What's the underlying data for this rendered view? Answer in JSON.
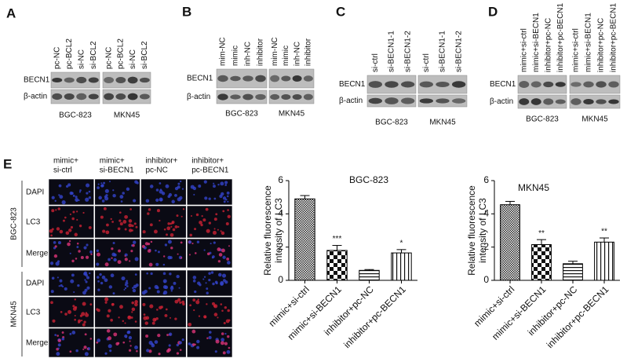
{
  "blots": [
    {
      "label": "A",
      "rows": [
        "BECN1",
        "β-actin"
      ],
      "cell_lines": [
        "BGC-823",
        "MKN45"
      ],
      "lanes": [
        [
          "pc-NC",
          "pc-BCL2",
          "si-NC",
          "si-BCL2"
        ],
        [
          "pc-NC",
          "pc-BCL2",
          "si-NC",
          "si-BCL2"
        ]
      ]
    },
    {
      "label": "B",
      "rows": [
        "BECN1",
        "β-actin"
      ],
      "cell_lines": [
        "BGC-823",
        "MKN45"
      ],
      "lanes": [
        [
          "mim-NC",
          "mimic",
          "inh-NC",
          "inhibitor"
        ],
        [
          "mim-NC",
          "mimic",
          "inh-NC",
          "inhibitor"
        ]
      ]
    },
    {
      "label": "C",
      "rows": [
        "BECN1",
        "β-actin"
      ],
      "cell_lines": [
        "BGC-823",
        "MKN45"
      ],
      "lanes": [
        [
          "si-ctrl",
          "si-BECN1-1",
          "si-BECN1-2"
        ],
        [
          "si-ctrl",
          "si-BECN1-1",
          "si-BECN1-2"
        ]
      ]
    },
    {
      "label": "D",
      "rows": [
        "BECN1",
        "β-actin"
      ],
      "cell_lines": [
        "BGC-823",
        "MKN45"
      ],
      "lanes": [
        [
          "mimic+si-ctrl",
          "mimic+si-BECN1",
          "inhibitor+pc-NC",
          "inhibitor+pc-BECN1"
        ],
        [
          "mimic+si-ctrl",
          "mimic+si-BECN1",
          "inhibitor+pc-NC",
          "inhibitor+pc-BECN1"
        ]
      ]
    }
  ],
  "panel_e": {
    "label": "E",
    "columns": [
      [
        "mimic+",
        "si-ctrl"
      ],
      [
        "mimic+",
        "si-BECN1"
      ],
      [
        "inhibitor+",
        "pc-NC"
      ],
      [
        "inhibitor+",
        "pc-BECN1"
      ]
    ],
    "groups": [
      "BGC-823",
      "MKN45"
    ],
    "rows": [
      "DAPI",
      "LC3",
      "Merge"
    ]
  },
  "chart_data": [
    {
      "type": "bar",
      "title": "BGC-823",
      "ylabel": [
        "Relative fluorescence",
        "intensity of LC3"
      ],
      "categories": [
        "mimic+si-ctrl",
        "mimic+si-BECN1",
        "inhibitor+pc-NC",
        "inhibitor+pc-BECN1"
      ],
      "values": [
        4.9,
        1.8,
        0.6,
        1.65
      ],
      "errors": [
        0.2,
        0.3,
        0.05,
        0.2
      ],
      "annotations": [
        null,
        "***",
        null,
        "*"
      ],
      "patterns": [
        "crosshatch",
        "checker",
        "hlines",
        "vlines"
      ],
      "ylim": [
        0,
        6
      ],
      "yticks": [
        0,
        2,
        4,
        6
      ]
    },
    {
      "type": "bar",
      "title": "MKN45",
      "ylabel": [
        "Relative fluorescence",
        "intensity of LC3"
      ],
      "categories": [
        "mimic+si-ctrl",
        "mimic+si-BECN1",
        "inhibitor+pc-NC",
        "inhibitor+pc-BECN1"
      ],
      "values": [
        4.55,
        2.15,
        1.0,
        2.3
      ],
      "errors": [
        0.2,
        0.3,
        0.15,
        0.25
      ],
      "annotations": [
        null,
        "**",
        null,
        "**"
      ],
      "patterns": [
        "crosshatch",
        "checker",
        "hlines",
        "vlines"
      ],
      "ylim": [
        0,
        6
      ],
      "yticks": [
        0,
        2,
        4,
        6
      ]
    }
  ]
}
